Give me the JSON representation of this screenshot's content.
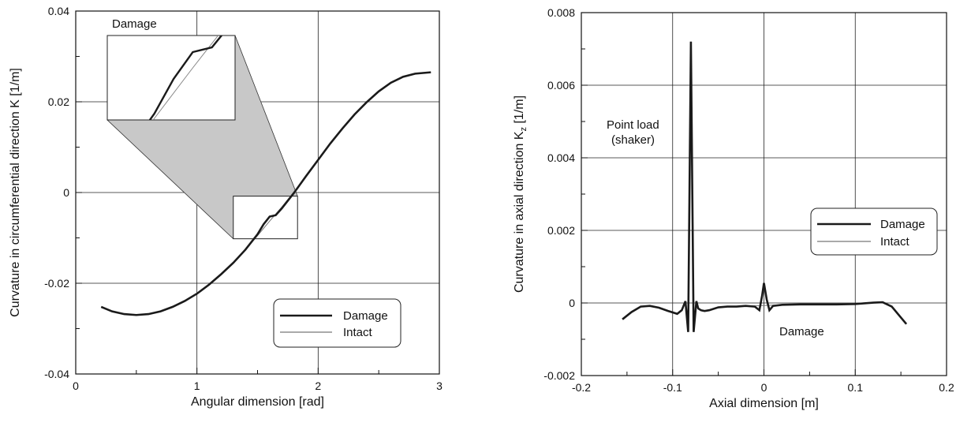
{
  "chart_data": [
    {
      "type": "line",
      "xlabel": "Angular dimension [rad]",
      "ylabel": "Curvature in circumferential direction K [1/m]",
      "xlim": [
        0,
        3
      ],
      "ylim": [
        -0.04,
        0.04
      ],
      "xticks": [
        0,
        1,
        2,
        3
      ],
      "xtick_labels": [
        "0",
        "1",
        "2",
        "3"
      ],
      "yticks": [
        -0.04,
        -0.02,
        0,
        0.02,
        0.04
      ],
      "ytick_labels": [
        "-0.04",
        "-0.02",
        "0",
        "0.02",
        "0.04"
      ],
      "grid": true,
      "legend_position": "bottom-right",
      "inset_label": "Damage",
      "series": [
        {
          "name": "Damage",
          "x": [
            0.21,
            0.3,
            0.4,
            0.5,
            0.6,
            0.7,
            0.8,
            0.9,
            1.0,
            1.1,
            1.2,
            1.3,
            1.4,
            1.5,
            1.55,
            1.6,
            1.65,
            1.7,
            1.8,
            1.9,
            2.0,
            2.1,
            2.2,
            2.3,
            2.4,
            2.5,
            2.6,
            2.7,
            2.8,
            2.93
          ],
          "y": [
            -0.0252,
            -0.0262,
            -0.0268,
            -0.027,
            -0.0268,
            -0.0262,
            -0.0252,
            -0.0239,
            -0.0223,
            -0.0203,
            -0.018,
            -0.0155,
            -0.0126,
            -0.0092,
            -0.007,
            -0.0053,
            -0.005,
            -0.0035,
            -0.0001,
            0.0036,
            0.0072,
            0.0108,
            0.0141,
            0.0172,
            0.0199,
            0.0223,
            0.0242,
            0.0255,
            0.0262,
            0.0265
          ]
        },
        {
          "name": "Intact",
          "x": [
            0.21,
            0.3,
            0.4,
            0.5,
            0.6,
            0.7,
            0.8,
            0.9,
            1.0,
            1.1,
            1.2,
            1.3,
            1.4,
            1.5,
            1.6,
            1.7,
            1.8,
            1.9,
            2.0,
            2.1,
            2.2,
            2.3,
            2.4,
            2.5,
            2.6,
            2.7,
            2.8,
            2.93
          ],
          "y": [
            -0.0252,
            -0.0262,
            -0.0268,
            -0.027,
            -0.0268,
            -0.0262,
            -0.0252,
            -0.0239,
            -0.0223,
            -0.0203,
            -0.018,
            -0.0155,
            -0.0126,
            -0.0095,
            -0.0063,
            -0.0032,
            0.0001,
            0.0036,
            0.0072,
            0.0108,
            0.0141,
            0.0172,
            0.0199,
            0.0223,
            0.0242,
            0.0255,
            0.0262,
            0.0265
          ]
        }
      ]
    },
    {
      "type": "line",
      "xlabel": "Axial dimension [m]",
      "ylabel": "Curvature in axial direction K",
      "ylabel_subscript": "z",
      "ylabel_unit": "[1/m]",
      "xlim": [
        -0.2,
        0.2
      ],
      "ylim": [
        -0.002,
        0.008
      ],
      "xticks": [
        -0.2,
        -0.1,
        0,
        0.1,
        0.2
      ],
      "xtick_labels": [
        "-0.2",
        "-0.1",
        "0",
        "0.1",
        "0.2"
      ],
      "yticks": [
        -0.002,
        0,
        0.002,
        0.004,
        0.006,
        0.008
      ],
      "ytick_labels": [
        "-0.002",
        "0",
        "0.002",
        "0.004",
        "0.006",
        "0.008"
      ],
      "grid": true,
      "legend_position": "middle-right",
      "annotations": [
        {
          "text": "Point load",
          "x": -0.13,
          "y": 0.0054
        },
        {
          "text": "(shaker)",
          "x": -0.13,
          "y": 0.0047
        },
        {
          "text": "Damage",
          "x": 0.015,
          "y": -0.0008
        }
      ],
      "series": [
        {
          "name": "Damage",
          "x": [
            -0.155,
            -0.145,
            -0.135,
            -0.125,
            -0.115,
            -0.105,
            -0.095,
            -0.09,
            -0.086,
            -0.083,
            -0.08,
            -0.077,
            -0.074,
            -0.072,
            -0.069,
            -0.065,
            -0.06,
            -0.05,
            -0.04,
            -0.03,
            -0.02,
            -0.01,
            -0.005,
            -0.002,
            0.0,
            0.003,
            0.006,
            0.01,
            0.02,
            0.04,
            0.06,
            0.08,
            0.1,
            0.11,
            0.12,
            0.13,
            0.14,
            0.15,
            0.156
          ],
          "y": [
            -0.00045,
            -0.00025,
            -0.0001,
            -8e-05,
            -0.00013,
            -0.00022,
            -0.0003,
            -0.0002,
            5e-05,
            -0.0008,
            0.0072,
            -0.0008,
            5e-05,
            -0.00015,
            -0.0002,
            -0.00022,
            -0.0002,
            -0.00012,
            -0.0001,
            -0.0001,
            -8e-05,
            -0.0001,
            -0.0002,
            0.0002,
            0.00055,
            0.0001,
            -0.0002,
            -8e-05,
            -5e-05,
            -4e-05,
            -4e-05,
            -4e-05,
            -3e-05,
            -1e-05,
            1e-05,
            2e-05,
            -0.0001,
            -0.0004,
            -0.00058
          ]
        },
        {
          "name": "Intact",
          "x": [
            -0.155,
            -0.145,
            -0.135,
            -0.125,
            -0.115,
            -0.105,
            -0.095,
            -0.09,
            -0.086,
            -0.083,
            -0.08,
            -0.077,
            -0.074,
            -0.072,
            -0.069,
            -0.065,
            -0.06,
            -0.05,
            -0.04,
            -0.03,
            -0.02,
            -0.01,
            0.0,
            0.01,
            0.02,
            0.04,
            0.06,
            0.08,
            0.1,
            0.11,
            0.12,
            0.13,
            0.14,
            0.15,
            0.156
          ],
          "y": [
            -0.00045,
            -0.00025,
            -0.0001,
            -8e-05,
            -0.00013,
            -0.00022,
            -0.0003,
            -0.0002,
            5e-05,
            -0.0008,
            0.0072,
            -0.0008,
            5e-05,
            -0.00015,
            -0.0002,
            -0.00022,
            -0.0002,
            -0.00012,
            -0.0001,
            -0.0001,
            -8e-05,
            -8e-05,
            -7e-05,
            -6e-05,
            -5e-05,
            -4e-05,
            -4e-05,
            -4e-05,
            -3e-05,
            -1e-05,
            1e-05,
            2e-05,
            -0.0001,
            -0.0004,
            -0.00058
          ]
        }
      ]
    }
  ]
}
